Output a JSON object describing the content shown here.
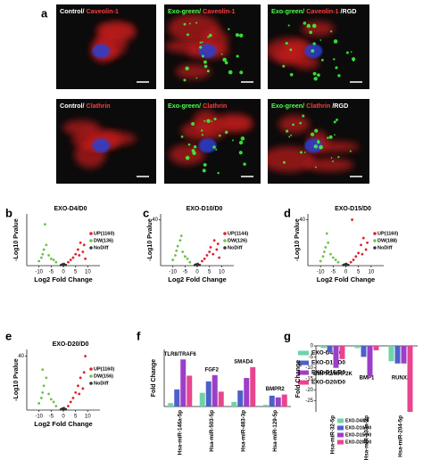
{
  "panel_a": {
    "label": "a",
    "images": [
      {
        "parts": [
          {
            "text": "Control/",
            "color": "#ffffff"
          },
          {
            "text": "Caveolin-1",
            "color": "#ff3b3b"
          }
        ]
      },
      {
        "parts": [
          {
            "text": "Exo-green/",
            "color": "#4cff4c"
          },
          {
            "text": "Caveolin-1",
            "color": "#ff3b3b"
          }
        ]
      },
      {
        "parts": [
          {
            "text": "Exo-green/",
            "color": "#4cff4c"
          },
          {
            "text": "Caveolin-1",
            "color": "#ff3b3b"
          },
          {
            "text": "/RGD",
            "color": "#ffffff"
          }
        ]
      },
      {
        "parts": [
          {
            "text": "Control/",
            "color": "#ffffff"
          },
          {
            "text": "Clathrin",
            "color": "#ff3b3b"
          }
        ]
      },
      {
        "parts": [
          {
            "text": "Exo-green/",
            "color": "#4cff4c"
          },
          {
            "text": "Clathrin",
            "color": "#ff3b3b"
          }
        ]
      },
      {
        "parts": [
          {
            "text": "Exo-green/",
            "color": "#4cff4c"
          },
          {
            "text": "Clathrin",
            "color": "#ff3b3b"
          },
          {
            "text": "/RGD",
            "color": "#ffffff"
          }
        ]
      }
    ]
  },
  "chart_data": [
    {
      "type": "scatter",
      "label": "b",
      "title": "EXO-D4/D0",
      "x_label": "Log2 Fold Change",
      "y_label": "-Log10 Pvalue",
      "xlim": [
        -15,
        15
      ],
      "ylim": [
        0,
        45
      ],
      "xticks": [
        -10,
        -5,
        0,
        5,
        10
      ],
      "yticks": [],
      "series": [
        {
          "name": "UP(1160)",
          "color": "#e0202a",
          "x": [
            2,
            3,
            4,
            5,
            6,
            6.5,
            7,
            8,
            8.5,
            9
          ],
          "values": [
            3,
            5,
            7,
            10,
            14,
            9,
            20,
            12,
            18,
            6
          ]
        },
        {
          "name": "DW(136)",
          "color": "#6cc24a",
          "x": [
            -10,
            -9,
            -8.5,
            -8,
            -7,
            -6,
            -5,
            -4,
            -3,
            -7.5
          ],
          "values": [
            4,
            7,
            10,
            14,
            18,
            9,
            6,
            5,
            3,
            36
          ]
        },
        {
          "name": "NoDiff",
          "color": "#333333",
          "x": [
            -1,
            -0.5,
            0,
            0.5,
            1,
            0.2
          ],
          "values": [
            0.5,
            1,
            0.3,
            0.8,
            0.6,
            1.5
          ]
        }
      ]
    },
    {
      "type": "scatter",
      "label": "c",
      "title": "EXO-D10/D0",
      "x_label": "Log2 Fold Change",
      "y_label": "-Log10 Pvalue",
      "xlim": [
        -15,
        15
      ],
      "ylim": [
        0,
        45
      ],
      "xticks": [
        -10,
        -5,
        0,
        5,
        10
      ],
      "yticks": [
        40
      ],
      "series": [
        {
          "name": "UP(1144)",
          "color": "#e0202a",
          "x": [
            2,
            3,
            4,
            5,
            5.5,
            6.5,
            7,
            8,
            8.5,
            9
          ],
          "values": [
            4,
            6,
            9,
            12,
            16,
            10,
            22,
            14,
            19,
            7
          ]
        },
        {
          "name": "DW(126)",
          "color": "#6cc24a",
          "x": [
            -10,
            -9,
            -8.5,
            -8,
            -7,
            -6,
            -5,
            -4,
            -3,
            -6.5
          ],
          "values": [
            5,
            9,
            13,
            17,
            22,
            12,
            8,
            6,
            3,
            26
          ]
        },
        {
          "name": "NoDiff",
          "color": "#333333",
          "x": [
            -1,
            -0.5,
            0,
            0.5,
            1,
            0.2
          ],
          "values": [
            0.5,
            1,
            0.3,
            0.8,
            0.6,
            1.5
          ]
        }
      ]
    },
    {
      "type": "scatter",
      "label": "d",
      "title": "EXO-D15/D0",
      "x_label": "Log2 Fold Change",
      "y_label": "-Log10 Pvalue",
      "xlim": [
        -15,
        15
      ],
      "ylim": [
        0,
        45
      ],
      "xticks": [
        -10,
        -5,
        0,
        5,
        10
      ],
      "yticks": [
        40
      ],
      "series": [
        {
          "name": "UP(1160)",
          "color": "#e0202a",
          "x": [
            2,
            3,
            4,
            5,
            6,
            6.5,
            7,
            8,
            8.5,
            2.5
          ],
          "values": [
            3,
            5,
            8,
            11,
            18,
            10,
            24,
            14,
            20,
            40
          ]
        },
        {
          "name": "DW(188)",
          "color": "#6cc24a",
          "x": [
            -10,
            -9,
            -8.5,
            -8,
            -7,
            -6,
            -5,
            -4,
            -3,
            -7.5
          ],
          "values": [
            4,
            8,
            12,
            16,
            20,
            10,
            7,
            5,
            3,
            28
          ]
        },
        {
          "name": "NoDiff",
          "color": "#333333",
          "x": [
            -1,
            -0.5,
            0,
            0.5,
            1,
            0.2
          ],
          "values": [
            0.5,
            1,
            0.3,
            0.8,
            0.6,
            1.5
          ]
        }
      ]
    },
    {
      "type": "scatter",
      "label": "e",
      "title": "EXO-D20/D0",
      "x_label": "Log2 Fold Change",
      "y_label": "-Log10 Pvalue",
      "xlim": [
        -15,
        15
      ],
      "ylim": [
        0,
        45
      ],
      "xticks": [
        -10,
        -5,
        0,
        5,
        10
      ],
      "yticks": [
        40
      ],
      "series": [
        {
          "name": "UP(1160)",
          "color": "#e0202a",
          "x": [
            2,
            3,
            4,
            5,
            6,
            6.5,
            7,
            8,
            8.5,
            9
          ],
          "values": [
            3,
            6,
            9,
            13,
            18,
            12,
            24,
            16,
            28,
            40
          ]
        },
        {
          "name": "DW(156)",
          "color": "#6cc24a",
          "x": [
            -10,
            -9,
            -8.5,
            -8,
            -7,
            -6,
            -5,
            -4,
            -3,
            -8.5
          ],
          "values": [
            5,
            9,
            13,
            18,
            24,
            12,
            8,
            6,
            3,
            30
          ]
        },
        {
          "name": "NoDiff",
          "color": "#333333",
          "x": [
            -1,
            -0.5,
            0,
            0.5,
            1,
            0.2
          ],
          "values": [
            0.5,
            1,
            0.3,
            0.8,
            0.6,
            1.5
          ]
        }
      ]
    },
    {
      "type": "bar",
      "label": "f",
      "y_label": "Fold Change",
      "ylim": [
        0,
        2000
      ],
      "yticks": [],
      "categories": [
        "Hsa-miR-146a-5p",
        "Hsa-miR-503-5p",
        "Hsa-miR-483-3p",
        "Hsa-miR-129-5p"
      ],
      "annotations": [
        "TLR8/TRAF6",
        "FGF2",
        "SMAD4",
        "BMPR2"
      ],
      "series": [
        {
          "name": "EXO-D4/D0",
          "color": "#6fd3a8",
          "values": [
            120,
            480,
            160,
            60
          ]
        },
        {
          "name": "EXO-D10/D0",
          "color": "#4f5fc9",
          "values": [
            600,
            880,
            560,
            380
          ]
        },
        {
          "name": "EXO-D15/D0",
          "color": "#9b3fc9",
          "values": [
            1650,
            1100,
            1000,
            320
          ]
        },
        {
          "name": "EXO-D20/D0",
          "color": "#e8458f",
          "values": [
            1080,
            520,
            1380,
            420
          ]
        }
      ]
    },
    {
      "type": "bar",
      "label": "g",
      "y_label": "Fold Change",
      "ylim": [
        -30,
        0
      ],
      "yticks": [
        0,
        -5,
        -10,
        -15,
        -20,
        -25
      ],
      "categories": [
        "Hsa-miR-32-5p",
        "Hsa-miR-133a-3p",
        "Hsa-miR-204-5p"
      ],
      "annotations": [
        "BMPR2/MAP2K",
        "BMP1",
        "RUNX2"
      ],
      "series": [
        {
          "name": "EXO-D4/D0",
          "color": "#6fd3a8",
          "values": [
            -1,
            -1,
            -7
          ]
        },
        {
          "name": "EXO-D10/D0",
          "color": "#4f5fc9",
          "values": [
            -3,
            -5,
            -8
          ]
        },
        {
          "name": "EXO-D15/D0",
          "color": "#9b3fc9",
          "values": [
            -10,
            -14,
            -8
          ]
        },
        {
          "name": "EXO-D20/D0",
          "color": "#e8458f",
          "values": [
            -6,
            -2,
            -30
          ]
        }
      ]
    }
  ]
}
